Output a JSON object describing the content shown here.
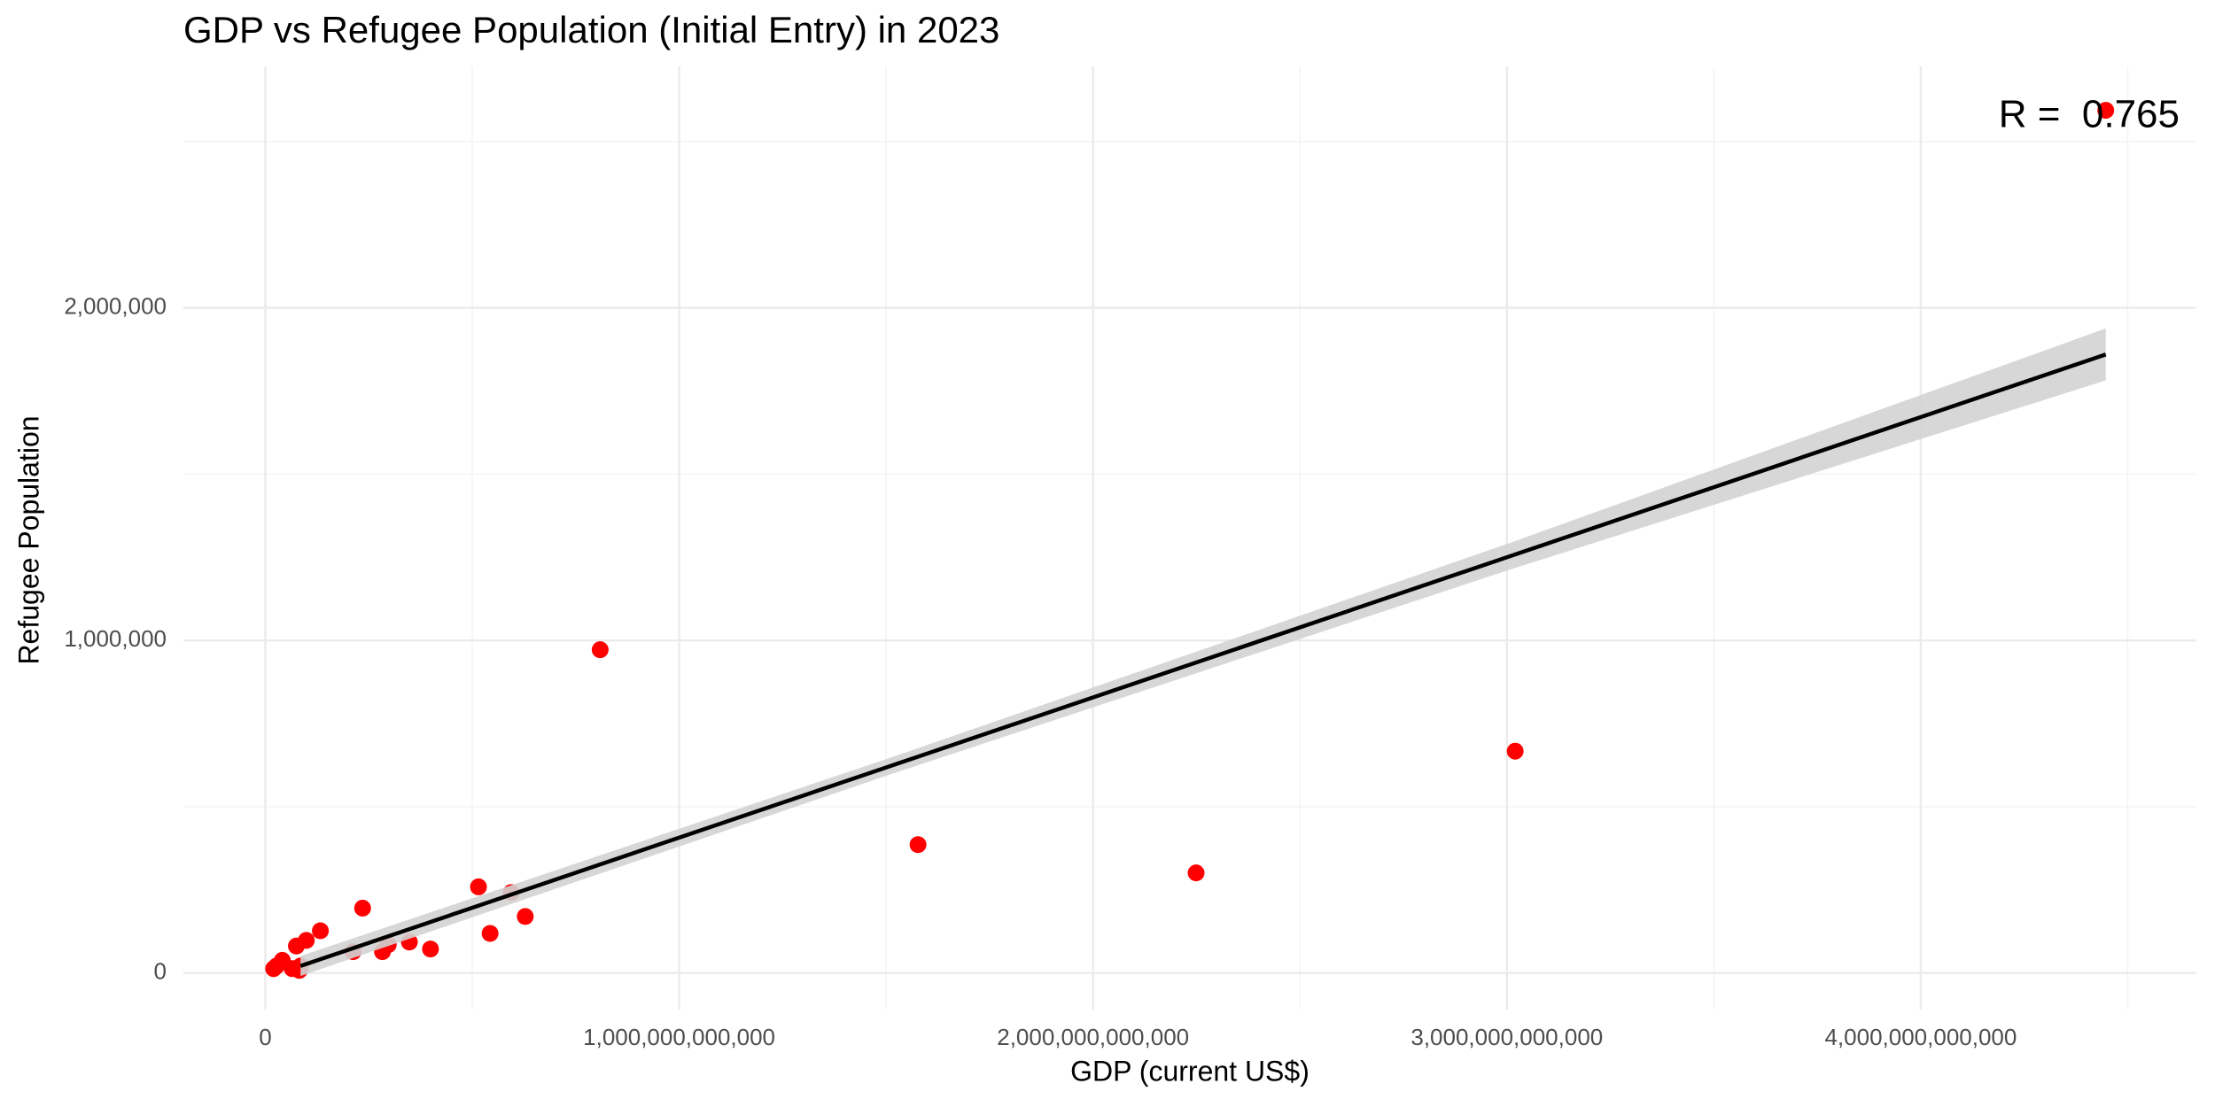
{
  "chart_data": {
    "type": "scatter",
    "title": "GDP vs Refugee Population (Initial Entry) in 2023",
    "x_label": "GDP (current US$)",
    "y_label": "Refugee Population",
    "annotation": "R =  0.765",
    "xlim": [
      -198000000000,
      4666000000000
    ],
    "ylim": [
      -110000,
      2726000
    ],
    "xticks": [
      0,
      {
        "value": 1000000000000,
        "label": "1,000,000,000,000"
      },
      {
        "value": 2000000000000,
        "label": "2,000,000,000,000"
      },
      {
        "value": 3000000000000,
        "label": "3,000,000,000,000"
      },
      {
        "value": 4000000000000,
        "label": "4,000,000,000,000"
      }
    ],
    "yticks": [
      0,
      {
        "value": 1000000,
        "label": "1,000,000"
      },
      {
        "value": 2000000,
        "label": "2,000,000"
      }
    ],
    "x_minor_ticks": [
      500000000000,
      1500000000000,
      2500000000000,
      3500000000000,
      4500000000000
    ],
    "y_minor_ticks": [
      500000,
      1500000,
      2500000
    ],
    "grid": true,
    "points": {
      "color": "#ff0000",
      "x": [
        4447000000000,
        809000000000,
        1577000000000,
        2249000000000,
        3020000000000,
        515000000000,
        594000000000,
        235000000000,
        628000000000,
        543000000000,
        133000000000,
        99000000000,
        348000000000,
        399000000000,
        297000000000,
        283000000000,
        212000000000,
        75000000000,
        41000000000,
        27000000000,
        20000000000,
        65000000000,
        85000000000,
        82000000000
      ],
      "y": [
        2594000,
        972000,
        386000,
        301000,
        667000,
        259000,
        242000,
        195000,
        170000,
        119000,
        127000,
        98000,
        93000,
        72000,
        85000,
        64000,
        64000,
        81000,
        38000,
        21000,
        13000,
        13000,
        21000,
        8000
      ]
    },
    "fit": {
      "color": "#000000",
      "band_color": "#d3d3d3",
      "x": [
        85000000000,
        1500000000000,
        3000000000000,
        4447000000000
      ],
      "y": [
        21000,
        618000,
        1250000,
        1860000
      ],
      "lower": [
        -9000,
        593000,
        1210000,
        1782000
      ],
      "upper": [
        51000,
        643000,
        1290000,
        1938000
      ]
    }
  }
}
